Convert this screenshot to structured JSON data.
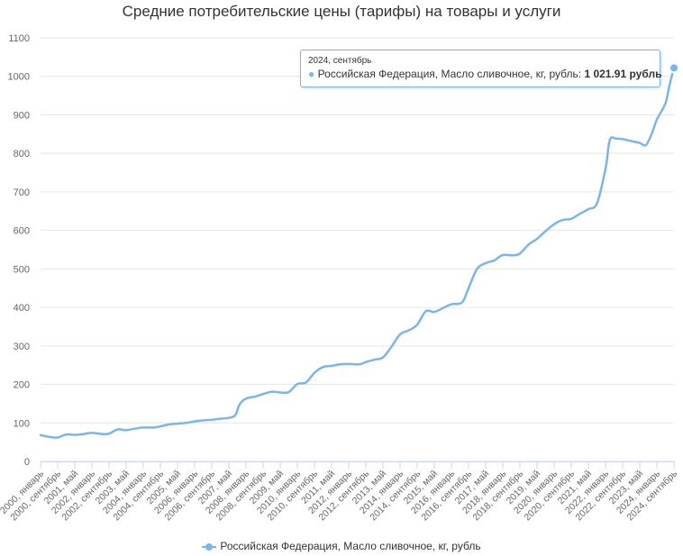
{
  "chart_data": {
    "type": "line",
    "title": "Средние потребительские цены (тарифы) на товары и услуги",
    "xlabel": "",
    "ylabel": "",
    "ylim": [
      0,
      1100
    ],
    "yticks": [
      0,
      100,
      200,
      300,
      400,
      500,
      600,
      700,
      800,
      900,
      1000,
      1100
    ],
    "grid": "horizontal",
    "legend_position": "bottom-center",
    "xticks": [
      "2000, январь",
      "2000, сентябрь",
      "2001, май",
      "2002, январь",
      "2002, сентябрь",
      "2003, май",
      "2004, январь",
      "2004, сентябрь",
      "2005, май",
      "2006, январь",
      "2006, сентябрь",
      "2007, май",
      "2008, январь",
      "2008, сентябрь",
      "2009, май",
      "2010, январь",
      "2010, сентябрь",
      "2011, май",
      "2012, январь",
      "2012, сентябрь",
      "2013, май",
      "2014, январь",
      "2014, сентябрь",
      "2015, май",
      "2016, январь",
      "2016, сентябрь",
      "2017, май",
      "2018, январь",
      "2018, сентябрь",
      "2019, май",
      "2020, январь",
      "2020, сентябрь",
      "2021, май",
      "2022, январь",
      "2022, сентябрь",
      "2023, май",
      "2024, январь",
      "2024, сентябрь"
    ],
    "series": [
      {
        "name": "Российская Федерация, Масло сливочное, кг, рубль",
        "color": "#7cb5ec",
        "points": [
          [
            "2000-01",
            68
          ],
          [
            "2000-06",
            63
          ],
          [
            "2000-09",
            62
          ],
          [
            "2001-01",
            70
          ],
          [
            "2001-05",
            69
          ],
          [
            "2001-09",
            71
          ],
          [
            "2002-01",
            74
          ],
          [
            "2002-06",
            71
          ],
          [
            "2002-09",
            72
          ],
          [
            "2003-01",
            83
          ],
          [
            "2003-05",
            81
          ],
          [
            "2003-09",
            85
          ],
          [
            "2004-01",
            88
          ],
          [
            "2004-06",
            88
          ],
          [
            "2004-09",
            91
          ],
          [
            "2005-01",
            96
          ],
          [
            "2005-05",
            98
          ],
          [
            "2005-09",
            100
          ],
          [
            "2006-01",
            104
          ],
          [
            "2006-06",
            107
          ],
          [
            "2006-09",
            108
          ],
          [
            "2007-01",
            111
          ],
          [
            "2007-05",
            113
          ],
          [
            "2007-08",
            120
          ],
          [
            "2007-10",
            148
          ],
          [
            "2008-01",
            163
          ],
          [
            "2008-05",
            168
          ],
          [
            "2008-09",
            175
          ],
          [
            "2009-01",
            181
          ],
          [
            "2009-05",
            179
          ],
          [
            "2009-09",
            180
          ],
          [
            "2010-01",
            201
          ],
          [
            "2010-05",
            205
          ],
          [
            "2010-09",
            230
          ],
          [
            "2011-01",
            245
          ],
          [
            "2011-05",
            248
          ],
          [
            "2011-09",
            252
          ],
          [
            "2012-01",
            253
          ],
          [
            "2012-06",
            252
          ],
          [
            "2012-09",
            258
          ],
          [
            "2013-01",
            264
          ],
          [
            "2013-05",
            270
          ],
          [
            "2013-09",
            298
          ],
          [
            "2014-01",
            330
          ],
          [
            "2014-05",
            340
          ],
          [
            "2014-09",
            355
          ],
          [
            "2015-01",
            390
          ],
          [
            "2015-05",
            388
          ],
          [
            "2015-09",
            398
          ],
          [
            "2016-01",
            408
          ],
          [
            "2016-06",
            413
          ],
          [
            "2016-09",
            450
          ],
          [
            "2017-01",
            500
          ],
          [
            "2017-05",
            515
          ],
          [
            "2017-09",
            522
          ],
          [
            "2018-01",
            536
          ],
          [
            "2018-06",
            535
          ],
          [
            "2018-09",
            540
          ],
          [
            "2019-01",
            563
          ],
          [
            "2019-05",
            578
          ],
          [
            "2019-09",
            598
          ],
          [
            "2020-01",
            616
          ],
          [
            "2020-05",
            627
          ],
          [
            "2020-09",
            630
          ],
          [
            "2021-01",
            643
          ],
          [
            "2021-05",
            655
          ],
          [
            "2021-09",
            670
          ],
          [
            "2022-01",
            760
          ],
          [
            "2022-03",
            835
          ],
          [
            "2022-06",
            838
          ],
          [
            "2022-09",
            837
          ],
          [
            "2023-01",
            832
          ],
          [
            "2023-05",
            827
          ],
          [
            "2023-08",
            822
          ],
          [
            "2023-11",
            857
          ],
          [
            "2024-01",
            888
          ],
          [
            "2024-05",
            930
          ],
          [
            "2024-07",
            980
          ],
          [
            "2024-09",
            1021.91
          ]
        ]
      }
    ],
    "tooltip": {
      "date": "2024, сентябрь",
      "label": "Российская Федерация, Масло сливочное, кг, рубль: ",
      "value": "1 021.91 рубль"
    }
  }
}
